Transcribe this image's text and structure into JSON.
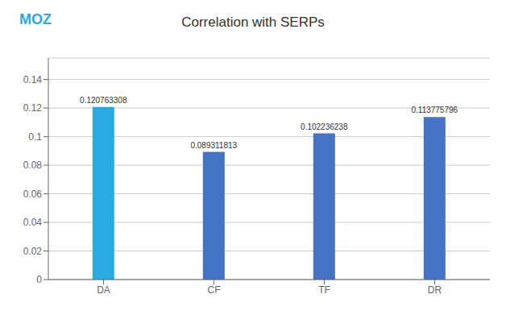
{
  "chart_data": {
    "type": "bar",
    "title": "Correlation with SERPs",
    "categories": [
      "DA",
      "CF",
      "TF",
      "DR"
    ],
    "values": [
      0.120763308,
      0.089311813,
      0.102236238,
      0.113775796
    ],
    "colors": [
      "#29ABE2",
      "#4472C4",
      "#4472C4",
      "#4472C4"
    ],
    "ylim": [
      0,
      0.155
    ],
    "yticks": [
      0,
      0.02,
      0.04,
      0.06,
      0.08,
      0.1,
      0.12,
      0.14
    ],
    "grid": true,
    "data_labels": true,
    "annotations": [
      "MOZ"
    ]
  }
}
